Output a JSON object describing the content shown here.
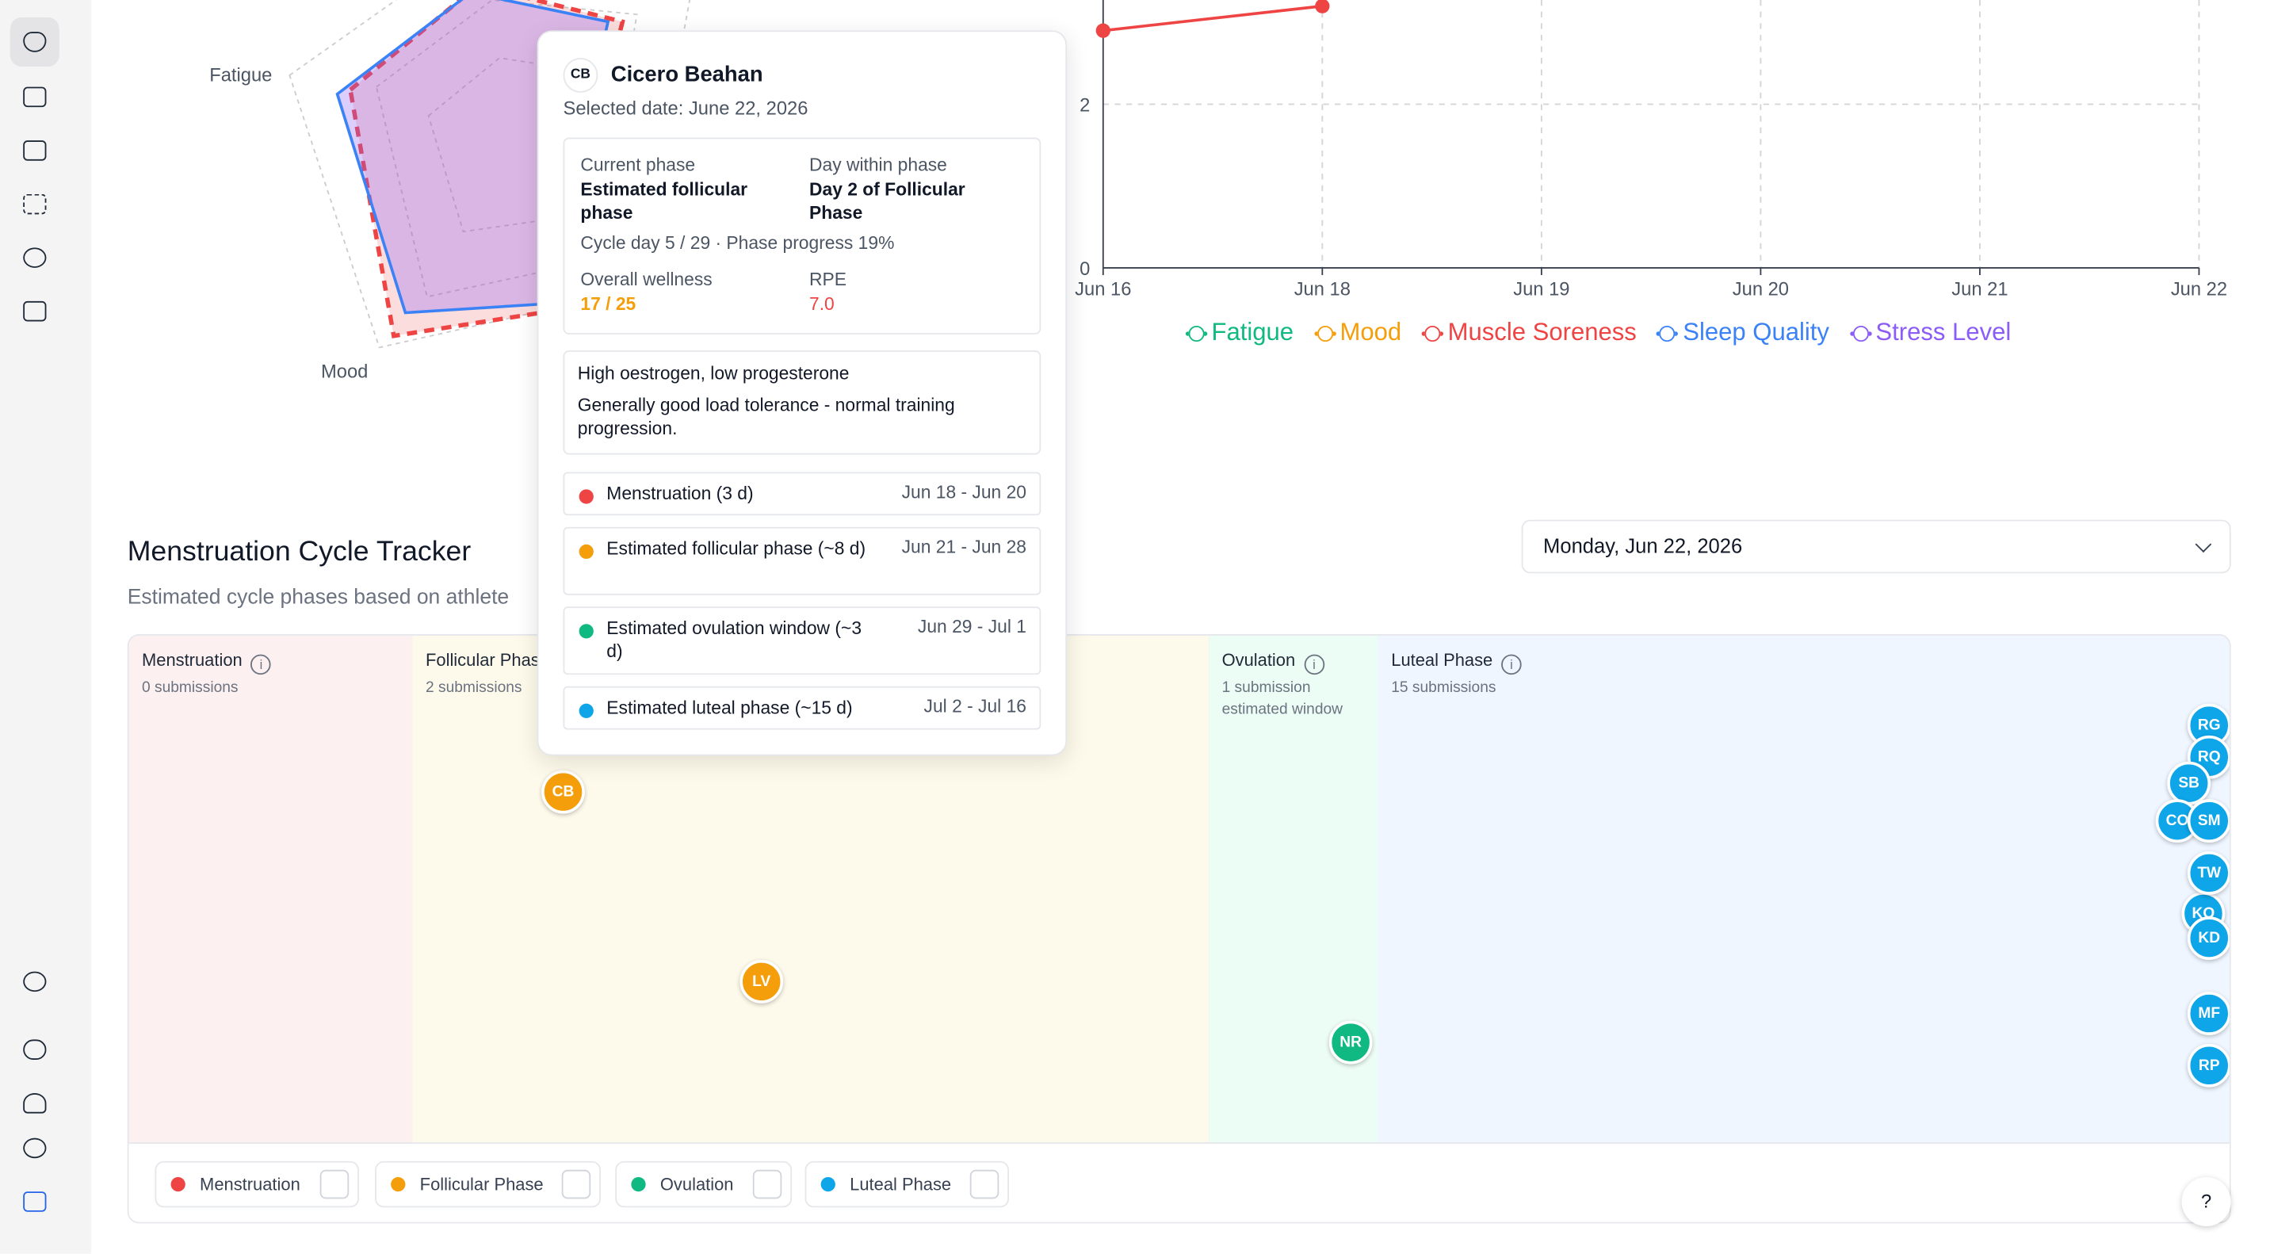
{
  "radar": {
    "axis_labels": [
      "Fatigue",
      "Mood"
    ]
  },
  "wellness_chart": {
    "type": "line",
    "categories": [
      "Jun 16",
      "Jun 18",
      "Jun 19",
      "Jun 20",
      "Jun 21",
      "Jun 22"
    ],
    "ylim": [
      0,
      4
    ],
    "yticks": [
      0,
      2
    ],
    "grid": true,
    "series": [
      {
        "name": "Fatigue",
        "color": "#10b981",
        "values": [
          null,
          null,
          null,
          null,
          null,
          null
        ]
      },
      {
        "name": "Mood",
        "color": "#f59e0b",
        "values": [
          null,
          null,
          null,
          null,
          null,
          null
        ]
      },
      {
        "name": "Muscle Soreness",
        "color": "#ef4444",
        "values": [
          2.9,
          3.2,
          null,
          null,
          null,
          null
        ]
      },
      {
        "name": "Sleep Quality",
        "color": "#3b82f6",
        "values": [
          null,
          null,
          null,
          null,
          null,
          null
        ]
      },
      {
        "name": "Stress Level",
        "color": "#8b5cf6",
        "values": [
          null,
          null,
          null,
          null,
          null,
          null
        ]
      }
    ]
  },
  "tracker": {
    "title": "Menstruation Cycle Tracker",
    "subtitle": "Estimated cycle phases based on athlete",
    "date_select": "Monday, Jun 22, 2026",
    "phases": [
      {
        "name": "Menstruation",
        "submissions": "0 submissions",
        "color": "#ef4444"
      },
      {
        "name": "Follicular Phase",
        "submissions": "2 submissions",
        "color": "#f59e0b"
      },
      {
        "name": "Ovulation",
        "submissions": "1 submission",
        "note": "estimated window",
        "color": "#10b981"
      },
      {
        "name": "Luteal Phase",
        "submissions": "15 submissions",
        "color": "#0ea5e9"
      }
    ],
    "athletes": [
      "CB",
      "LV",
      "NR",
      "RG",
      "RQ",
      "SB",
      "CO",
      "SM",
      "KO",
      "TW",
      "KD",
      "MF",
      "RP"
    ],
    "help": "?"
  },
  "tooltip": {
    "initials": "CB",
    "name": "Cicero Beahan",
    "selected_date": "Selected date: June 22, 2026",
    "current_phase_label": "Current phase",
    "current_phase": "Estimated follicular phase",
    "day_label": "Day within phase",
    "day": "Day 2 of Follicular Phase",
    "cycle_info": "Cycle day 5 / 29 · Phase progress 19%",
    "wellness_label": "Overall wellness",
    "wellness": "17 / 25",
    "rpe_label": "RPE",
    "rpe": "7.0",
    "hormones": "High oestrogen, low progesterone",
    "guidance": "Generally good load tolerance - normal training progression.",
    "phases": [
      {
        "name": "Menstruation (3 d)",
        "range": "Jun 18 - Jun 20"
      },
      {
        "name": "Estimated follicular phase (~8 d)",
        "range": "Jun 21 - Jun 28"
      },
      {
        "name": "Estimated ovulation window (~3 d)",
        "range": "Jun 29 - Jul 1"
      },
      {
        "name": "Estimated luteal phase (~15 d)",
        "range": "Jul 2 - Jul 16"
      }
    ]
  }
}
